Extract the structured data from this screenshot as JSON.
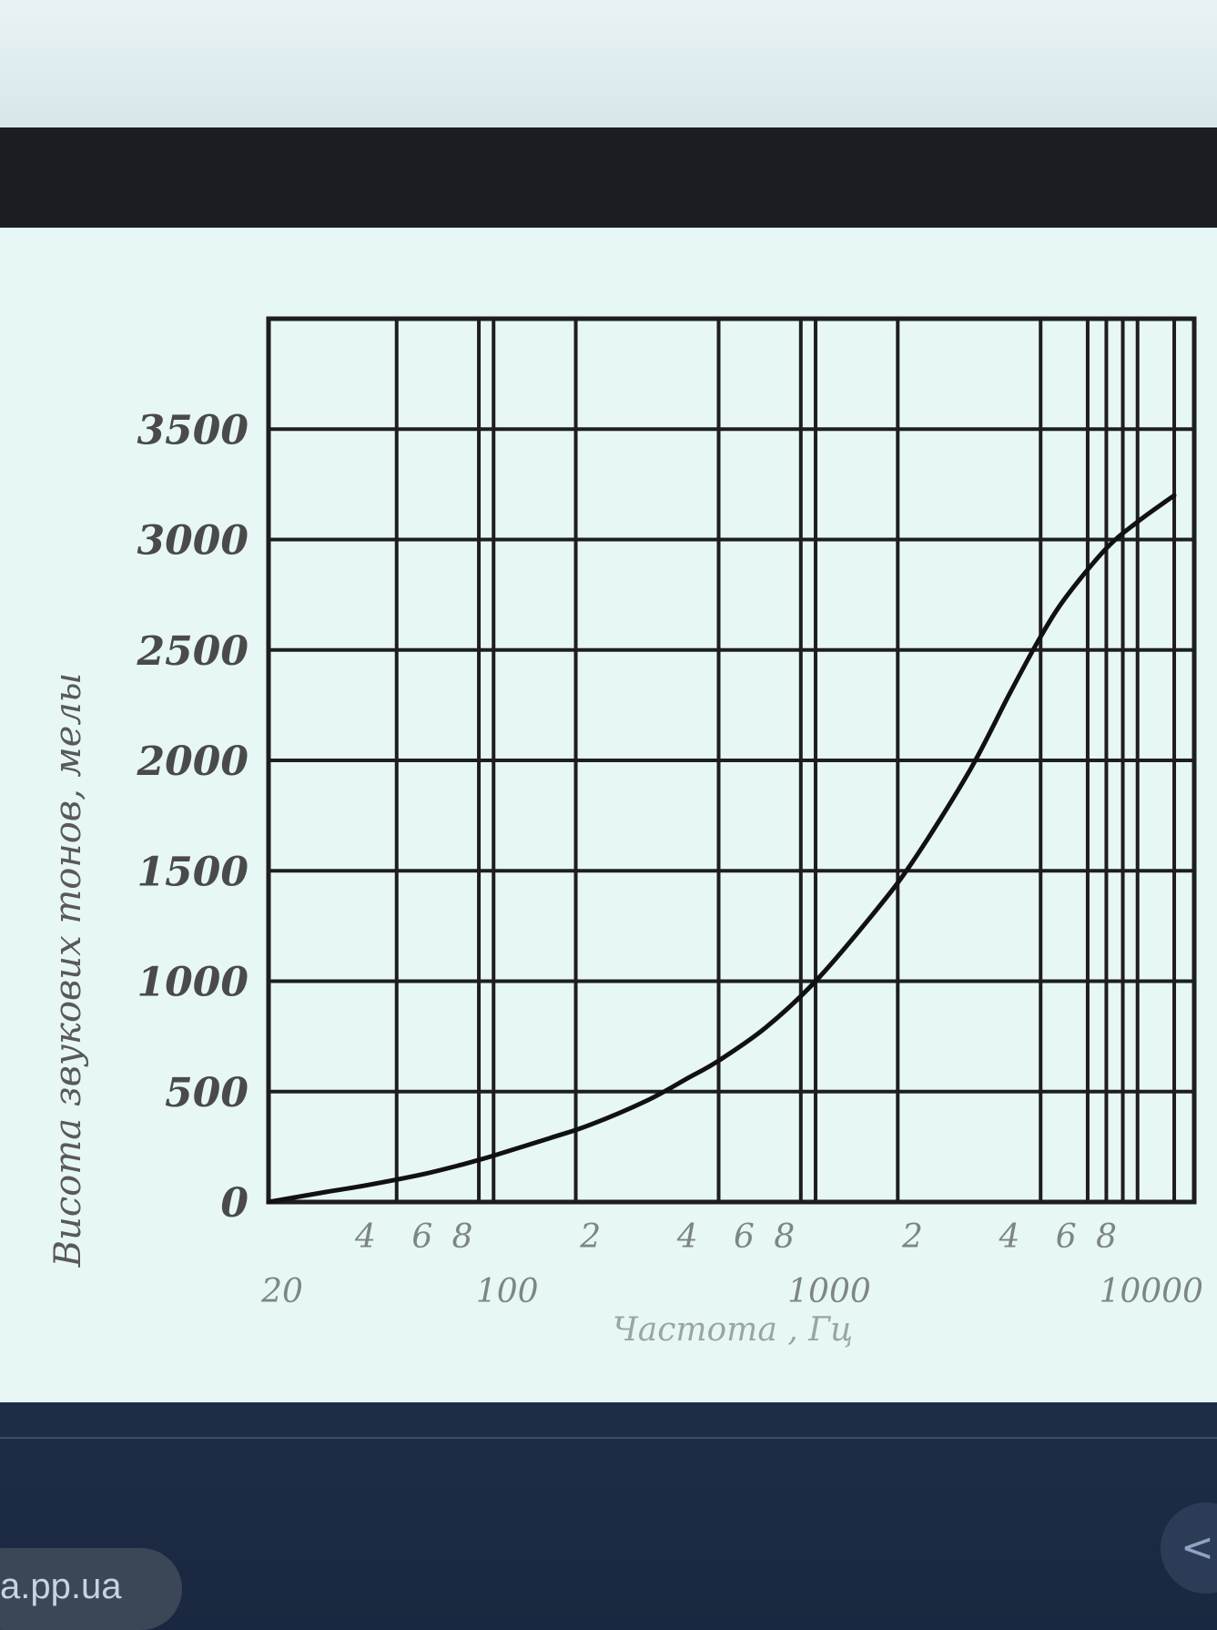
{
  "chart_data": {
    "type": "line",
    "title": "",
    "xlabel": "Частота , Гц",
    "ylabel": "Висота звукових тонов, мелы",
    "x_scale": "log",
    "xlim": [
      20,
      15000
    ],
    "ylim": [
      0,
      4000
    ],
    "grid": true,
    "y_ticks": [
      0,
      500,
      1000,
      1500,
      2000,
      2500,
      3000,
      3500
    ],
    "y_tick_labels": [
      "0",
      "500",
      "1000",
      "1500",
      "2000",
      "2500",
      "3000",
      "3500"
    ],
    "x_minor_ticks": [
      {
        "x": 40,
        "label": "4"
      },
      {
        "x": 60,
        "label": "6"
      },
      {
        "x": 80,
        "label": "8"
      },
      {
        "x": 200,
        "label": "2"
      },
      {
        "x": 400,
        "label": "4"
      },
      {
        "x": 600,
        "label": "6"
      },
      {
        "x": 800,
        "label": "8"
      },
      {
        "x": 2000,
        "label": "2"
      },
      {
        "x": 4000,
        "label": "4"
      },
      {
        "x": 6000,
        "label": "6"
      },
      {
        "x": 8000,
        "label": "8"
      }
    ],
    "x_major_ticks": [
      {
        "x": 20,
        "label": "20"
      },
      {
        "x": 100,
        "label": "100"
      },
      {
        "x": 1000,
        "label": "1000"
      },
      {
        "x": 10000,
        "label": "10000"
      }
    ],
    "x_gridlines": [
      50,
      90,
      100,
      180,
      500,
      900,
      1000,
      1800,
      5000,
      7000,
      8000,
      9000,
      10000,
      13000
    ],
    "series": [
      {
        "x": [
          20,
          30,
          40,
          60,
          80,
          100,
          150,
          200,
          300,
          400,
          500,
          700,
          1000,
          1500,
          2000,
          3000,
          4000,
          5000,
          6000,
          8000,
          10000,
          13000
        ],
        "y": [
          0,
          45,
          75,
          125,
          170,
          210,
          290,
          350,
          460,
          560,
          640,
          790,
          1000,
          1300,
          1540,
          1950,
          2300,
          2560,
          2740,
          2960,
          3080,
          3200
        ]
      }
    ]
  },
  "site": {
    "label": "a.pp.ua"
  },
  "nav": {
    "arrow": "<"
  }
}
